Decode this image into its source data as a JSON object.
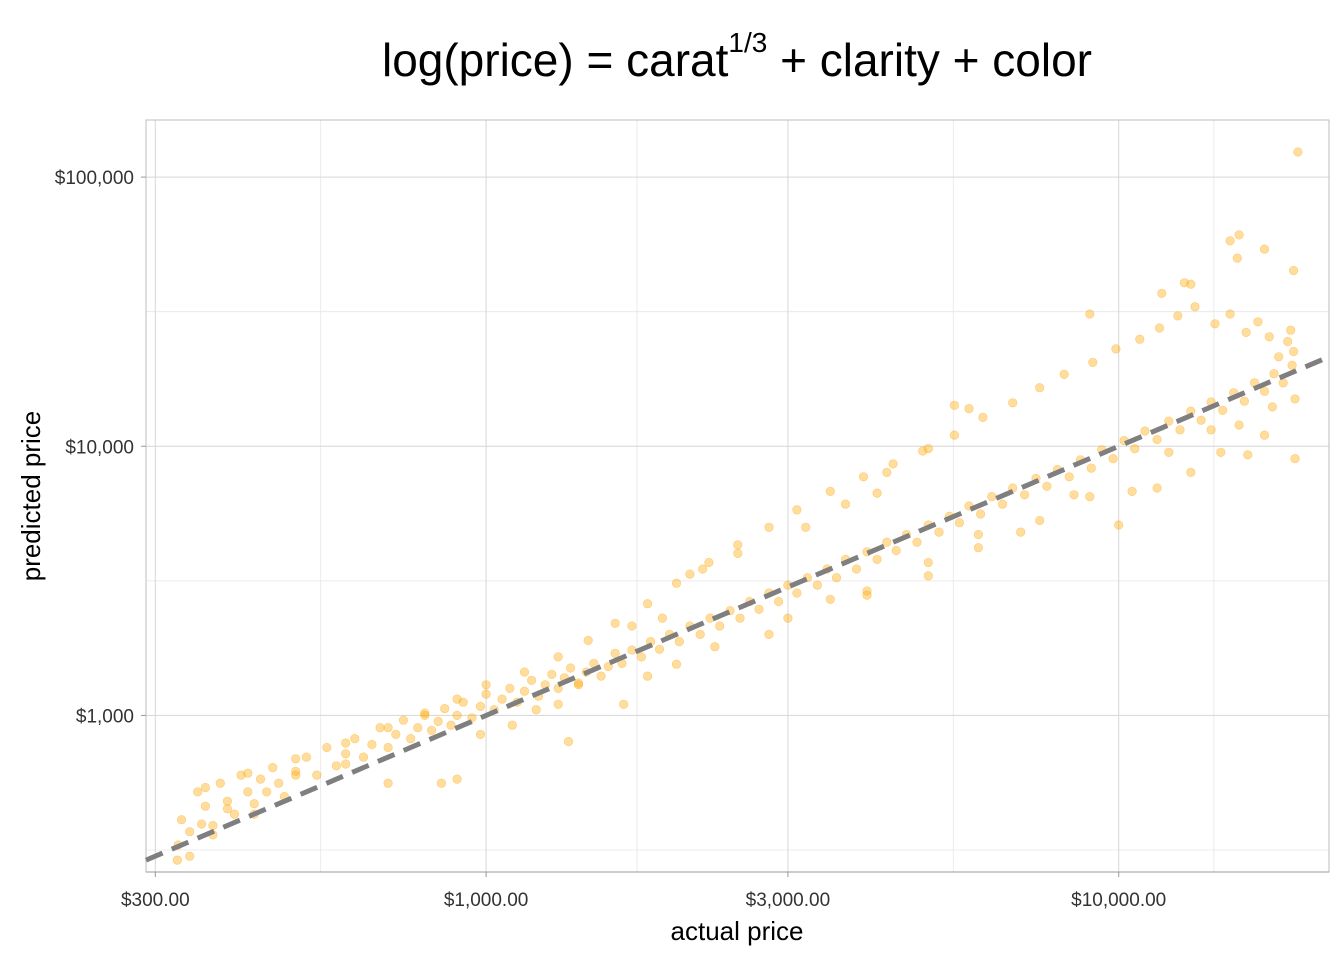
{
  "chart_data": {
    "type": "scatter",
    "title": {
      "base": "log(price) = carat",
      "superscript": "1/3",
      "rest": " + clarity + color"
    },
    "xlabel": "actual price",
    "ylabel": "predicted price",
    "x_scale": "log10",
    "y_scale": "log10",
    "xlim": [
      290,
      21500
    ],
    "ylim": [
      262,
      163000
    ],
    "x_ticks": [
      {
        "value": 300,
        "label": "$300.00"
      },
      {
        "value": 1000,
        "label": "$1,000.00"
      },
      {
        "value": 3000,
        "label": "$3,000.00"
      },
      {
        "value": 10000,
        "label": "$10,000.00"
      }
    ],
    "y_ticks": [
      {
        "value": 1000,
        "label": "$1,000"
      },
      {
        "value": 10000,
        "label": "$10,000"
      },
      {
        "value": 100000,
        "label": "$100,000"
      }
    ],
    "reference_line": {
      "type": "y = x",
      "style": "dashed",
      "color": "#7f7f7f"
    },
    "point_color": "#ffa500",
    "grid": true,
    "legend": "none",
    "series": [
      {
        "points": [
          [
            326,
            330
          ],
          [
            330,
            410
          ],
          [
            340,
            370
          ],
          [
            350,
            520
          ],
          [
            360,
            460
          ],
          [
            370,
            390
          ],
          [
            380,
            560
          ],
          [
            390,
            480
          ],
          [
            400,
            430
          ],
          [
            410,
            600
          ],
          [
            420,
            520
          ],
          [
            430,
            470
          ],
          [
            440,
            580
          ],
          [
            450,
            520
          ],
          [
            460,
            640
          ],
          [
            470,
            560
          ],
          [
            480,
            500
          ],
          [
            500,
            620
          ],
          [
            520,
            700
          ],
          [
            540,
            600
          ],
          [
            560,
            760
          ],
          [
            580,
            650
          ],
          [
            600,
            720
          ],
          [
            620,
            820
          ],
          [
            640,
            700
          ],
          [
            660,
            780
          ],
          [
            680,
            900
          ],
          [
            700,
            760
          ],
          [
            720,
            850
          ],
          [
            740,
            960
          ],
          [
            760,
            820
          ],
          [
            780,
            900
          ],
          [
            800,
            1000
          ],
          [
            820,
            880
          ],
          [
            840,
            950
          ],
          [
            860,
            1060
          ],
          [
            880,
            920
          ],
          [
            900,
            1000
          ],
          [
            920,
            1120
          ],
          [
            950,
            980
          ],
          [
            980,
            1080
          ],
          [
            1000,
            1200
          ],
          [
            1030,
            1050
          ],
          [
            1060,
            1150
          ],
          [
            1090,
            1260
          ],
          [
            1120,
            1120
          ],
          [
            1150,
            1230
          ],
          [
            1180,
            1350
          ],
          [
            1210,
            1180
          ],
          [
            1240,
            1300
          ],
          [
            1270,
            1420
          ],
          [
            1300,
            1260
          ],
          [
            1330,
            1380
          ],
          [
            1360,
            1500
          ],
          [
            1400,
            1300
          ],
          [
            1440,
            1450
          ],
          [
            1480,
            1560
          ],
          [
            1520,
            1400
          ],
          [
            1560,
            1520
          ],
          [
            1600,
            1700
          ],
          [
            1640,
            1560
          ],
          [
            1700,
            1750
          ],
          [
            1760,
            1650
          ],
          [
            1820,
            1880
          ],
          [
            1880,
            1760
          ],
          [
            1950,
            2000
          ],
          [
            2020,
            1880
          ],
          [
            2100,
            2150
          ],
          [
            2180,
            2000
          ],
          [
            2260,
            2300
          ],
          [
            2340,
            2150
          ],
          [
            2430,
            2450
          ],
          [
            2520,
            2300
          ],
          [
            2610,
            2650
          ],
          [
            2700,
            2480
          ],
          [
            2800,
            2850
          ],
          [
            2900,
            2650
          ],
          [
            3000,
            3050
          ],
          [
            3100,
            2850
          ],
          [
            3220,
            3250
          ],
          [
            3340,
            3050
          ],
          [
            3460,
            3500
          ],
          [
            3580,
            3250
          ],
          [
            3700,
            3800
          ],
          [
            3850,
            3500
          ],
          [
            4000,
            4050
          ],
          [
            4150,
            3800
          ],
          [
            4300,
            4400
          ],
          [
            4450,
            4100
          ],
          [
            4620,
            4700
          ],
          [
            4800,
            4400
          ],
          [
            5000,
            5100
          ],
          [
            5200,
            4800
          ],
          [
            5400,
            5500
          ],
          [
            5600,
            5200
          ],
          [
            5800,
            6000
          ],
          [
            6050,
            5600
          ],
          [
            6300,
            6500
          ],
          [
            6550,
            6100
          ],
          [
            6800,
            7000
          ],
          [
            7100,
            6600
          ],
          [
            7400,
            7600
          ],
          [
            7700,
            7100
          ],
          [
            8000,
            8200
          ],
          [
            8350,
            7700
          ],
          [
            8700,
            8900
          ],
          [
            9050,
            8300
          ],
          [
            9400,
            9700
          ],
          [
            9800,
            9000
          ],
          [
            10200,
            10500
          ],
          [
            10600,
            9800
          ],
          [
            11000,
            11400
          ],
          [
            11500,
            10600
          ],
          [
            12000,
            12400
          ],
          [
            12500,
            11500
          ],
          [
            13000,
            13500
          ],
          [
            13500,
            12500
          ],
          [
            14000,
            14600
          ],
          [
            14600,
            13600
          ],
          [
            15200,
            15800
          ],
          [
            15800,
            14700
          ],
          [
            16400,
            17200
          ],
          [
            17000,
            16000
          ],
          [
            17600,
            18600
          ],
          [
            18200,
            17200
          ],
          [
            18800,
            20000
          ],
          [
            18900,
            22500
          ],
          [
            18500,
            24500
          ],
          [
            18700,
            27000
          ],
          [
            17900,
            21500
          ],
          [
            17300,
            25500
          ],
          [
            16600,
            29000
          ],
          [
            15900,
            26500
          ],
          [
            15000,
            31000
          ],
          [
            14200,
            28500
          ],
          [
            13200,
            33000
          ],
          [
            12400,
            30500
          ],
          [
            11600,
            27500
          ],
          [
            10800,
            25000
          ],
          [
            9900,
            23000
          ],
          [
            9100,
            20500
          ],
          [
            8200,
            18500
          ],
          [
            7500,
            16500
          ],
          [
            6800,
            14500
          ],
          [
            6100,
            12800
          ],
          [
            5500,
            11000
          ],
          [
            4900,
            9600
          ],
          [
            4400,
            8600
          ],
          [
            3950,
            7700
          ],
          [
            3500,
            6800
          ],
          [
            3100,
            5800
          ],
          [
            2800,
            5000
          ],
          [
            2500,
            4300
          ],
          [
            2250,
            3700
          ],
          [
            2000,
            3100
          ],
          [
            1800,
            2600
          ],
          [
            1600,
            2200
          ],
          [
            1450,
            1900
          ],
          [
            1300,
            1650
          ],
          [
            1150,
            1450
          ],
          [
            1000,
            1300
          ],
          [
            900,
            1150
          ],
          [
            800,
            1020
          ],
          [
            700,
            900
          ],
          [
            600,
            790
          ],
          [
            500,
            690
          ],
          [
            420,
            610
          ],
          [
            360,
            540
          ],
          [
            19200,
            124000
          ],
          [
            15500,
            61000
          ],
          [
            15000,
            58000
          ],
          [
            15400,
            50000
          ],
          [
            17000,
            54000
          ],
          [
            18900,
            45000
          ],
          [
            13000,
            40000
          ],
          [
            12700,
            40500
          ],
          [
            11700,
            37000
          ],
          [
            9000,
            31000
          ],
          [
            5500,
            14200
          ],
          [
            5800,
            13800
          ],
          [
            5000,
            9800
          ],
          [
            4300,
            8000
          ],
          [
            4150,
            6700
          ],
          [
            3700,
            6100
          ],
          [
            3200,
            5000
          ],
          [
            2500,
            4000
          ],
          [
            2200,
            3500
          ],
          [
            2100,
            3350
          ],
          [
            1900,
            2300
          ],
          [
            1700,
            2150
          ],
          [
            1400,
            1320
          ],
          [
            1300,
            1100
          ],
          [
            1200,
            1050
          ],
          [
            1350,
            800
          ],
          [
            1100,
            920
          ],
          [
            980,
            850
          ],
          [
            900,
            580
          ],
          [
            850,
            560
          ],
          [
            700,
            560
          ],
          [
            600,
            660
          ],
          [
            500,
            600
          ],
          [
            430,
            430
          ],
          [
            390,
            450
          ],
          [
            370,
            360
          ],
          [
            355,
            395
          ],
          [
            340,
            300
          ],
          [
            325,
            290
          ],
          [
            3000,
            2300
          ],
          [
            4000,
            2900
          ],
          [
            5000,
            3300
          ],
          [
            6000,
            4700
          ],
          [
            7500,
            5300
          ],
          [
            9000,
            6500
          ],
          [
            10500,
            6800
          ],
          [
            11500,
            7000
          ],
          [
            13000,
            8000
          ],
          [
            14500,
            9500
          ],
          [
            16000,
            9300
          ],
          [
            17000,
            11000
          ],
          [
            19000,
            9000
          ],
          [
            19000,
            15000
          ],
          [
            17500,
            14000
          ],
          [
            15500,
            12000
          ],
          [
            14000,
            11500
          ],
          [
            12000,
            9500
          ],
          [
            10000,
            5100
          ],
          [
            8500,
            6600
          ],
          [
            7000,
            4800
          ],
          [
            6000,
            4200
          ],
          [
            5000,
            3700
          ],
          [
            4000,
            2800
          ],
          [
            3500,
            2700
          ],
          [
            2800,
            2000
          ],
          [
            2300,
            1800
          ],
          [
            2000,
            1550
          ],
          [
            1800,
            1400
          ],
          [
            1650,
            1100
          ]
        ]
      }
    ]
  }
}
